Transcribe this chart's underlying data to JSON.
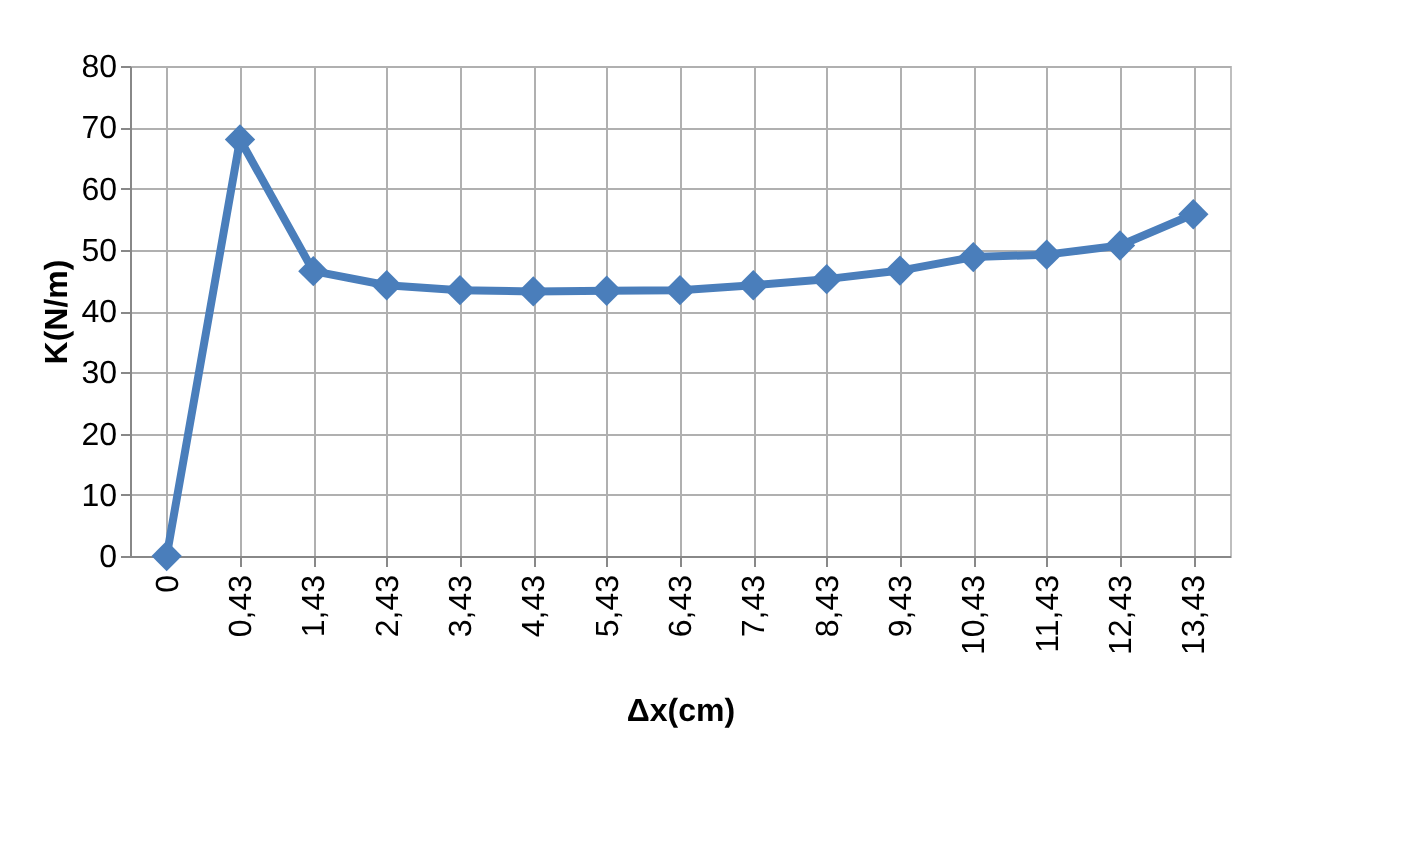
{
  "chart_data": {
    "type": "line",
    "xlabel": "Δx(cm)",
    "ylabel": "K(N/m)",
    "categories": [
      "0",
      "0,43",
      "1,43",
      "2,43",
      "3,43",
      "4,43",
      "5,43",
      "6,43",
      "7,43",
      "8,43",
      "9,43",
      "10,43",
      "11,43",
      "12,43",
      "13,43"
    ],
    "series": [
      {
        "color": "#4a7ebb",
        "values": [
          0,
          68,
          46.5,
          44.2,
          43.4,
          43.2,
          43.3,
          43.4,
          44.2,
          45.2,
          46.6,
          48.8,
          49.2,
          50.7,
          55.8
        ]
      }
    ],
    "ylim": [
      0,
      80
    ],
    "yticks": [
      0,
      10,
      20,
      30,
      40,
      50,
      60,
      70,
      80
    ],
    "grid": true,
    "marker": "diamond",
    "line_style": "solid"
  }
}
